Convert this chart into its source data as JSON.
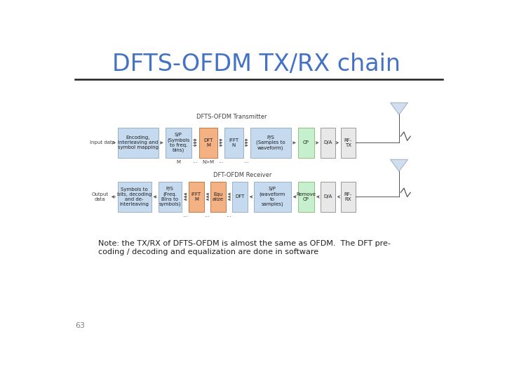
{
  "title": "DFTS-OFDM TX/RX chain",
  "title_color": "#4472C4",
  "title_fontsize": 24,
  "title_fontweight": "normal",
  "bg_color": "#ffffff",
  "note_line1": "Note: the TX/RX of DFTS-OFDM is almost the same as OFDM.  The DFT pre-",
  "note_line2": "coding / decoding and equalization are done in software",
  "page_num": "63",
  "tx_label": "DFTS-OFDM Transmitter",
  "rx_label": "DFT-OFDM Receiver",
  "separator_color": "#1F1F1F",
  "line_color": "#555555",
  "tx_blocks": [
    {
      "label": "Encoding,\ninterleaving and\nsymbol mapping",
      "color": "#C5D9EF",
      "border": "#9BB0C8"
    },
    {
      "label": "S/P\n(Symbols\nto freq.\nbins)",
      "color": "#C5D9EF",
      "border": "#9BB0C8"
    },
    {
      "label": "DFT\nM",
      "color": "#F4B183",
      "border": "#C87941"
    },
    {
      "label": "IFFT\nN",
      "color": "#C5D9EF",
      "border": "#9BB0C8"
    },
    {
      "label": "P/S\n(Samples to\nwaveform)",
      "color": "#C5D9EF",
      "border": "#9BB0C8"
    },
    {
      "label": "CP",
      "color": "#C6EFCE",
      "border": "#92C07A"
    },
    {
      "label": "D/A",
      "color": "#E8E8E8",
      "border": "#999999"
    },
    {
      "label": "RF-\nTX",
      "color": "#E8E8E8",
      "border": "#999999"
    }
  ],
  "tx_sublabels": [
    "",
    "M",
    "N>M",
    "",
    "",
    "",
    "",
    ""
  ],
  "rx_blocks": [
    {
      "label": "Symbols to\nbits, decoding\nand de-\ninterleaving",
      "color": "#C5D9EF",
      "border": "#9BB0C8"
    },
    {
      "label": "P/S\n(Freq.\nBins to\nsymbols)",
      "color": "#C5D9EF",
      "border": "#9BB0C8"
    },
    {
      "label": "IFFT\nM",
      "color": "#F4B183",
      "border": "#C87941"
    },
    {
      "label": "Equ\nalize",
      "color": "#F4B183",
      "border": "#C87941"
    },
    {
      "label": "DFT",
      "color": "#C5D9EF",
      "border": "#9BB0C8"
    },
    {
      "label": "S/P\n(waveform\nto\nsamples)",
      "color": "#C5D9EF",
      "border": "#9BB0C8"
    },
    {
      "label": "Remove\nCP",
      "color": "#C6EFCE",
      "border": "#92C07A"
    },
    {
      "label": "D/A",
      "color": "#E8E8E8",
      "border": "#999999"
    },
    {
      "label": "RF-\nRX",
      "color": "#E8E8E8",
      "border": "#999999"
    }
  ]
}
